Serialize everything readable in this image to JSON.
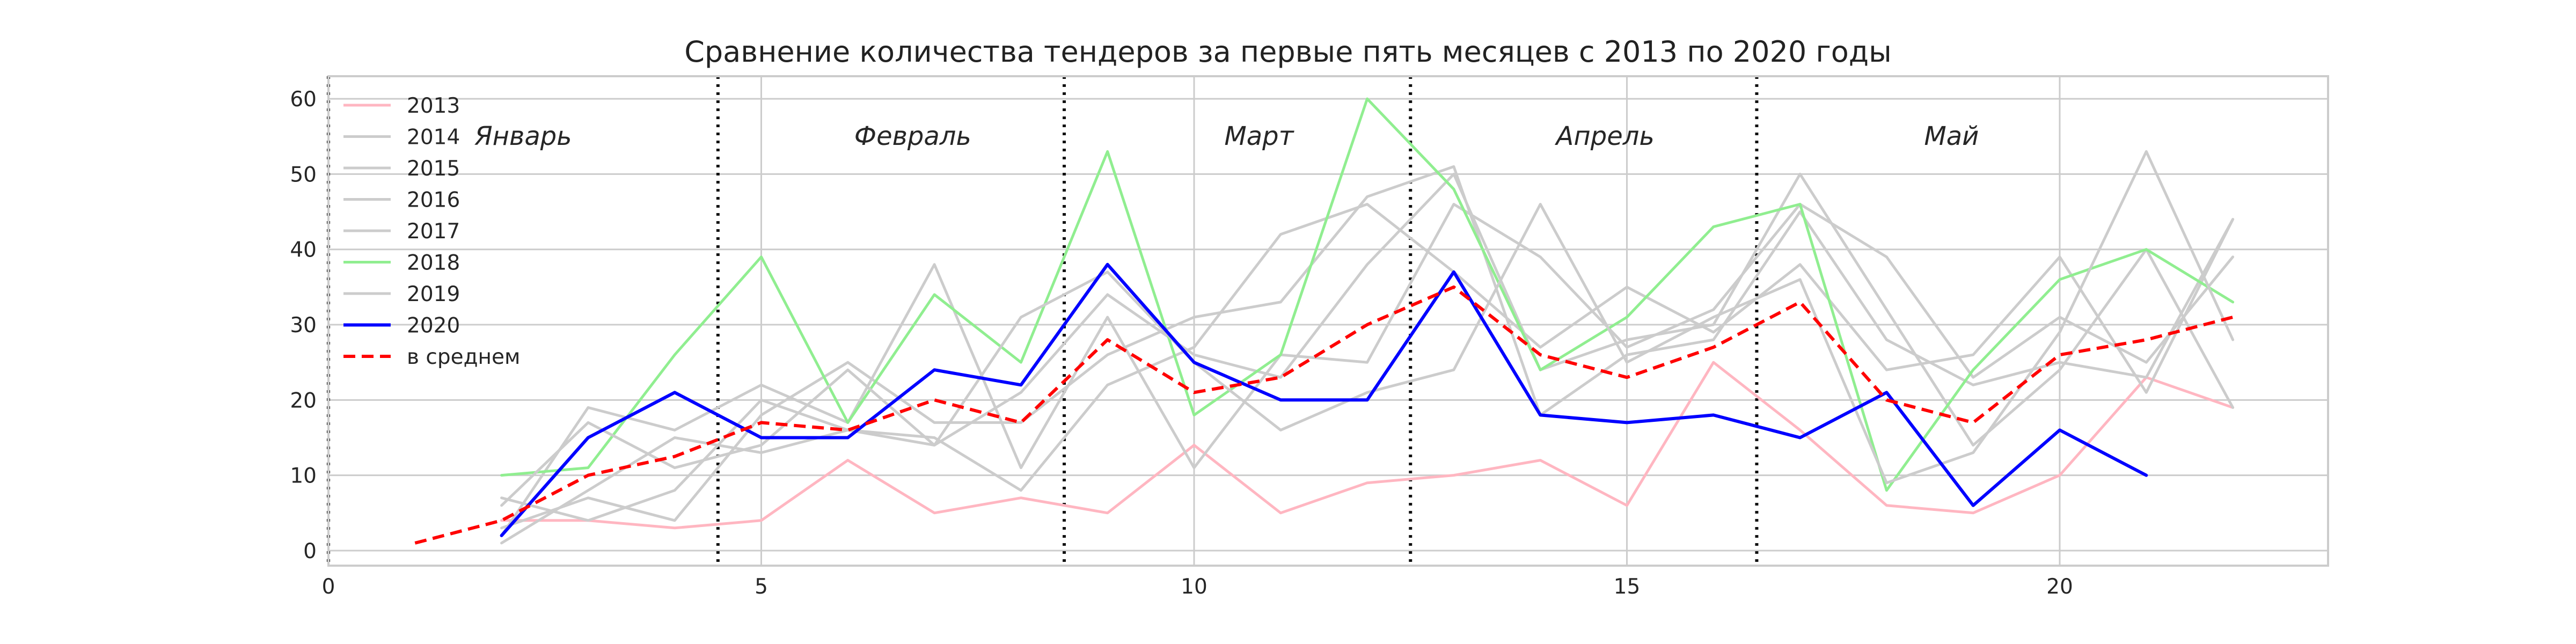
{
  "chart_data": {
    "type": "line",
    "title": "Сравнение количества тендеров за первые пять месяцев с 2013 по 2020 годы",
    "xlabel": "",
    "ylabel": "",
    "xlim": [
      0,
      23.1
    ],
    "ylim": [
      -2,
      63
    ],
    "xticks": [
      0,
      5,
      10,
      15,
      20
    ],
    "yticks": [
      0,
      10,
      20,
      30,
      40,
      50,
      60
    ],
    "grid": true,
    "legend_position": "top-left",
    "month_separators": [
      0,
      4.5,
      8.5,
      12.5,
      16.5
    ],
    "month_labels": [
      {
        "label": "Январь",
        "x": 2.25,
        "y": 55
      },
      {
        "label": "Февраль",
        "x": 6.75,
        "y": 55
      },
      {
        "label": "Март",
        "x": 10.75,
        "y": 55
      },
      {
        "label": "Апрель",
        "x": 14.75,
        "y": 55
      },
      {
        "label": "Май",
        "x": 18.75,
        "y": 55
      }
    ],
    "series": [
      {
        "name": "2013",
        "color": "#ffb6c1",
        "style": "solid",
        "width": 5,
        "x": [
          2,
          3,
          4,
          5,
          6,
          7,
          8,
          9,
          10,
          11,
          12,
          13,
          14,
          15,
          16,
          17,
          18,
          19,
          20,
          21,
          22
        ],
        "y": [
          4,
          4,
          3,
          4,
          12,
          5,
          7,
          5,
          14,
          5,
          9,
          10,
          12,
          6,
          25,
          16,
          6,
          5,
          10,
          23,
          19
        ]
      },
      {
        "name": "2014",
        "color": "#cccccc",
        "style": "solid",
        "width": 5,
        "x": [
          2,
          3,
          4,
          5,
          6,
          7,
          8,
          9,
          10,
          11,
          12,
          13,
          14,
          15,
          16,
          17,
          18,
          19,
          20,
          21,
          22
        ],
        "y": [
          1,
          8,
          15,
          13,
          16,
          14,
          21,
          34,
          26,
          23,
          38,
          50,
          24,
          28,
          30,
          50,
          32,
          14,
          24,
          40,
          19
        ]
      },
      {
        "name": "2015",
        "color": "#cccccc",
        "style": "solid",
        "width": 5,
        "x": [
          2,
          3,
          4,
          5,
          6,
          7,
          8,
          9,
          10,
          11,
          12,
          13,
          14,
          15,
          16,
          17,
          18,
          19,
          20,
          21,
          22
        ],
        "y": [
          7,
          4,
          8,
          20,
          16,
          15,
          8,
          22,
          27,
          42,
          46,
          37,
          27,
          35,
          29,
          38,
          24,
          26,
          39,
          21,
          44
        ]
      },
      {
        "name": "2016",
        "color": "#cccccc",
        "style": "solid",
        "width": 5,
        "x": [
          2,
          3,
          4,
          5,
          6,
          7,
          8,
          9,
          10,
          11,
          12,
          13,
          14,
          15,
          16,
          17,
          18,
          19,
          20,
          21,
          22
        ],
        "y": [
          2,
          19,
          16,
          22,
          17,
          38,
          11,
          31,
          11,
          26,
          25,
          46,
          39,
          27,
          32,
          46,
          39,
          23,
          31,
          25,
          39
        ]
      },
      {
        "name": "2017",
        "color": "#cccccc",
        "style": "solid",
        "width": 5,
        "x": [
          2,
          3,
          4,
          5,
          6,
          7,
          8,
          9,
          10,
          11,
          12,
          13,
          14,
          15,
          16,
          17,
          18,
          19,
          20,
          21,
          22
        ],
        "y": [
          3,
          7,
          4,
          18,
          25,
          17,
          17,
          26,
          31,
          33,
          47,
          51,
          18,
          26,
          28,
          45,
          28,
          22,
          25,
          23,
          44
        ]
      },
      {
        "name": "2018",
        "color": "#90ee90",
        "style": "solid",
        "width": 5,
        "x": [
          2,
          3,
          4,
          5,
          6,
          7,
          8,
          9,
          10,
          11,
          12,
          13,
          14,
          15,
          16,
          17,
          18,
          19,
          20,
          21,
          22
        ],
        "y": [
          10,
          11,
          26,
          39,
          17,
          34,
          25,
          53,
          18,
          26,
          60,
          48,
          24,
          31,
          43,
          46,
          8,
          24,
          36,
          40,
          33
        ]
      },
      {
        "name": "2019",
        "color": "#cccccc",
        "style": "solid",
        "width": 5,
        "x": [
          2,
          3,
          4,
          5,
          6,
          7,
          8,
          9,
          10,
          11,
          12,
          13,
          14,
          15,
          16,
          17,
          18,
          19,
          20,
          21,
          22
        ],
        "y": [
          6,
          17,
          11,
          14,
          24,
          14,
          31,
          37,
          25,
          16,
          21,
          24,
          46,
          25,
          31,
          36,
          9,
          13,
          29,
          53,
          28
        ]
      },
      {
        "name": "2020",
        "color": "#0000ff",
        "style": "solid",
        "width": 6,
        "x": [
          2,
          3,
          4,
          5,
          6,
          7,
          8,
          9,
          10,
          11,
          12,
          13,
          14,
          15,
          16,
          17,
          18,
          19,
          20,
          21
        ],
        "y": [
          2,
          15,
          21,
          15,
          15,
          24,
          22,
          38,
          25,
          20,
          20,
          37,
          18,
          17,
          18,
          15,
          21,
          6,
          16,
          10
        ]
      },
      {
        "name": "в среднем",
        "color": "#ff0000",
        "style": "dashed",
        "width": 6,
        "x": [
          1,
          2,
          3,
          4,
          5,
          6,
          7,
          8,
          9,
          10,
          11,
          12,
          13,
          14,
          15,
          16,
          17,
          18,
          19,
          20,
          21,
          22
        ],
        "y": [
          1,
          4,
          10,
          12.5,
          17,
          16,
          20,
          17,
          28,
          21,
          23,
          30,
          35,
          26,
          23,
          27,
          33,
          20,
          17,
          26,
          28,
          31
        ]
      }
    ]
  }
}
